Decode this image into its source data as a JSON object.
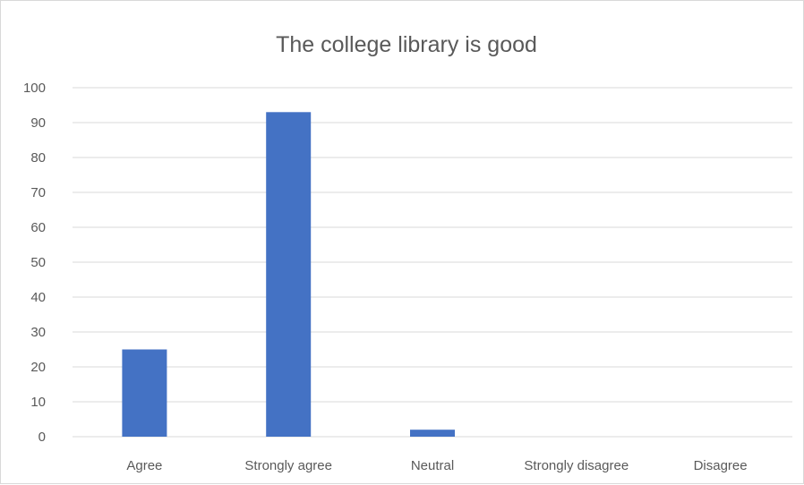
{
  "chart_data": {
    "type": "bar",
    "title": "The college library is good",
    "categories": [
      "Agree",
      "Strongly agree",
      "Neutral",
      "Strongly disagree",
      "Disagree"
    ],
    "values": [
      25,
      93,
      2,
      0,
      0
    ],
    "xlabel": "",
    "ylabel": "",
    "ylim": [
      0,
      100
    ],
    "yticks": [
      "0",
      "10",
      "20",
      "30",
      "40",
      "50",
      "60",
      "70",
      "80",
      "90",
      "100"
    ],
    "grid": true,
    "legend": "none",
    "bar_color": "#4472c4",
    "grid_color": "#d9d9d9",
    "text_color": "#595959"
  }
}
